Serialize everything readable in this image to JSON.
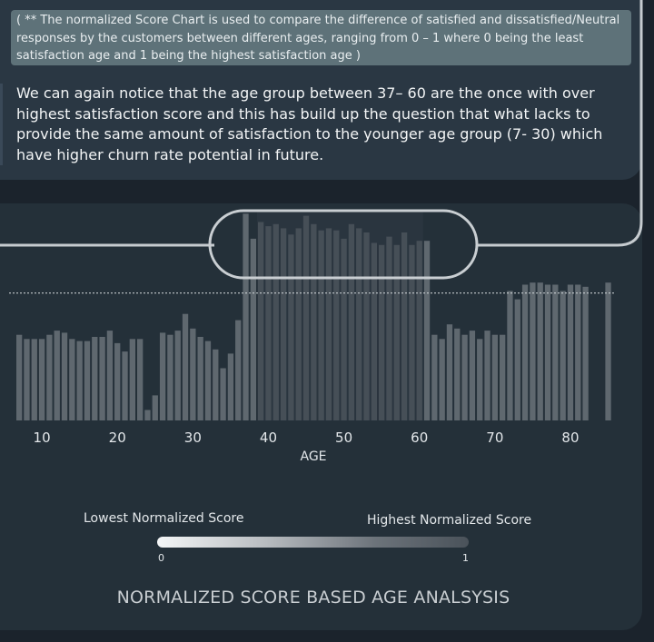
{
  "note": "( ** The normalized Score Chart is used to compare the difference of satisfied and dissatisfied/Neutral responses by the customers between different ages, ranging from 0   – 1 where 0 being the least satisfaction age and 1 being the highest satisfaction age )",
  "description": "We can again notice that the age group between 37– 60 are the once with over highest satisfaction score and this has build up the question that what lacks to provide the same amount of satisfaction to the younger age group (7- 30) which have higher churn rate potential in future.",
  "chart_data": {
    "type": "bar",
    "xlabel": "AGE",
    "ylabel": "",
    "title": "NORMALIZED SCORE BASED AGE ANALSYSIS",
    "x_ticks": [
      10,
      20,
      30,
      40,
      50,
      60,
      70,
      80
    ],
    "xlim": [
      6.5,
      86.5
    ],
    "ylim": [
      0,
      1
    ],
    "reference_line": 0.61,
    "highlight_range": [
      39,
      60
    ],
    "x": [
      7,
      8,
      9,
      10,
      11,
      12,
      13,
      14,
      15,
      16,
      17,
      18,
      19,
      20,
      21,
      22,
      23,
      24,
      25,
      26,
      27,
      28,
      29,
      30,
      31,
      32,
      33,
      34,
      35,
      36,
      37,
      38,
      39,
      40,
      41,
      42,
      43,
      44,
      45,
      46,
      47,
      48,
      49,
      50,
      51,
      52,
      53,
      54,
      55,
      56,
      57,
      58,
      59,
      60,
      61,
      62,
      63,
      64,
      65,
      66,
      67,
      68,
      69,
      70,
      71,
      72,
      73,
      74,
      75,
      76,
      77,
      78,
      79,
      80,
      81,
      82,
      85
    ],
    "values": [
      0.41,
      0.39,
      0.39,
      0.39,
      0.41,
      0.43,
      0.42,
      0.39,
      0.38,
      0.38,
      0.4,
      0.4,
      0.43,
      0.37,
      0.33,
      0.39,
      0.39,
      0.05,
      0.12,
      0.42,
      0.41,
      0.43,
      0.51,
      0.44,
      0.4,
      0.38,
      0.34,
      0.25,
      0.32,
      0.48,
      0.99,
      0.87,
      0.95,
      0.93,
      0.94,
      0.92,
      0.89,
      0.92,
      0.98,
      0.94,
      0.91,
      0.92,
      0.91,
      0.87,
      0.94,
      0.92,
      0.9,
      0.85,
      0.84,
      0.88,
      0.84,
      0.9,
      0.84,
      0.86,
      0.86,
      0.41,
      0.39,
      0.46,
      0.44,
      0.41,
      0.43,
      0.39,
      0.43,
      0.41,
      0.41,
      0.62,
      0.58,
      0.65,
      0.66,
      0.66,
      0.65,
      0.65,
      0.62,
      0.65,
      0.65,
      0.64,
      0.66
    ]
  },
  "legend": {
    "low_label": "Lowest Normalized Score",
    "high_label": "Highest Normalized Score",
    "min": "0",
    "max": "1"
  },
  "colors": {
    "bar": "#5f686f",
    "bar_highlight": "#464f57",
    "background": "#243039",
    "top_card": "#2a3743",
    "note_box": "#5e7279"
  }
}
